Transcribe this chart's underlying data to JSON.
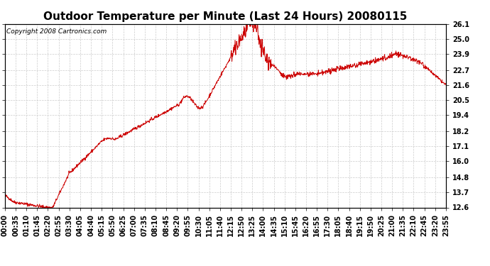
{
  "title": "Outdoor Temperature per Minute (Last 24 Hours) 20080115",
  "copyright_text": "Copyright 2008 Cartronics.com",
  "line_color": "#cc0000",
  "background_color": "#ffffff",
  "plot_bg_color": "#ffffff",
  "grid_color": "#cccccc",
  "yticks": [
    12.6,
    13.7,
    14.8,
    16.0,
    17.1,
    18.2,
    19.4,
    20.5,
    21.6,
    22.7,
    23.9,
    25.0,
    26.1
  ],
  "ylim": [
    12.6,
    26.1
  ],
  "x_tick_labels": [
    "00:00",
    "00:35",
    "01:10",
    "01:45",
    "02:20",
    "02:55",
    "03:30",
    "04:05",
    "04:40",
    "05:15",
    "05:50",
    "06:25",
    "07:00",
    "07:35",
    "08:10",
    "08:45",
    "09:20",
    "09:55",
    "10:30",
    "11:05",
    "11:40",
    "12:15",
    "12:50",
    "13:25",
    "14:00",
    "14:35",
    "15:10",
    "15:45",
    "16:20",
    "16:55",
    "17:30",
    "18:05",
    "18:40",
    "19:15",
    "19:50",
    "20:25",
    "21:00",
    "21:35",
    "22:10",
    "22:45",
    "23:20",
    "23:55"
  ],
  "num_points": 1440,
  "title_fontsize": 11,
  "tick_fontsize": 7,
  "copyright_fontsize": 6.5
}
